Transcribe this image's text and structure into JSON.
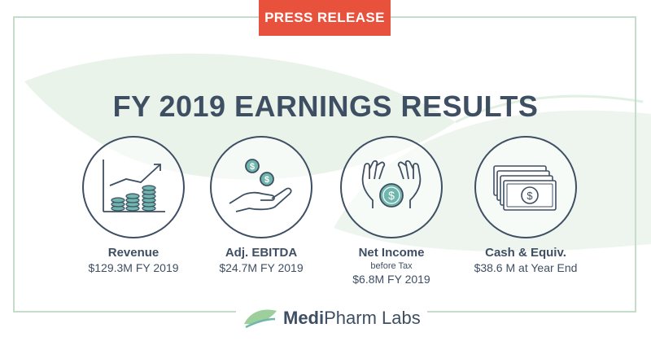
{
  "badge": "PRESS RELEASE",
  "headline": "FY 2019 EARNINGS RESULTS",
  "metrics": [
    {
      "icon": "growth-chart-coins-icon",
      "label": "Revenue",
      "sub": "",
      "value": "$129.3M FY 2019"
    },
    {
      "icon": "hand-coins-icon",
      "label": "Adj. EBITDA",
      "sub": "",
      "value": "$24.7M FY 2019"
    },
    {
      "icon": "hands-dollar-coin-icon",
      "label": "Net Income",
      "sub": "before Tax",
      "value": "$6.8M FY 2019"
    },
    {
      "icon": "banknotes-stack-icon",
      "label": "Cash & Equiv.",
      "sub": "",
      "value": "$38.6 M at Year End"
    }
  ],
  "logo": {
    "bold": "Medi",
    "rest": "Pharm Labs"
  },
  "colors": {
    "navy": "#3f4f63",
    "coral": "#e8523d",
    "teal": "#6fb6ad",
    "leaf_green": "#9ccf9b",
    "frame": "#c5dccb"
  }
}
